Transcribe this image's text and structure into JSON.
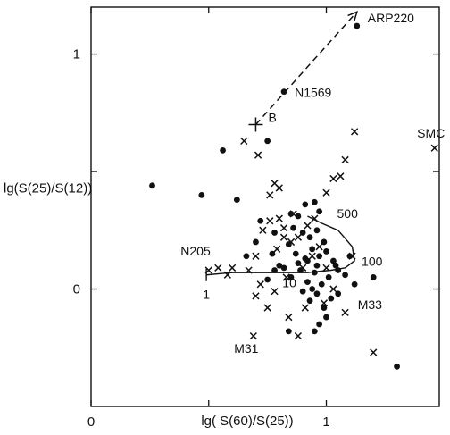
{
  "chart_data": {
    "type": "scatter",
    "title": "",
    "xlabel": "lg( S(60)/S(25))",
    "ylabel": "lg(S(25)/S(12))",
    "xlim": [
      0.0,
      1.48
    ],
    "ylim": [
      -0.5,
      1.2
    ],
    "grid": false,
    "x_ticks": [
      0,
      0.5,
      1
    ],
    "x_tick_labels": [
      "0",
      "",
      "1"
    ],
    "y_ticks": [
      0,
      0.5,
      1
    ],
    "y_tick_labels": [
      "0",
      "",
      "1"
    ],
    "series": [
      {
        "marker": "dot",
        "points": [
          [
            0.26,
            0.44
          ],
          [
            0.47,
            0.4
          ],
          [
            0.62,
            0.38
          ],
          [
            0.56,
            0.59
          ],
          [
            0.75,
            0.63
          ],
          [
            0.82,
            0.84
          ],
          [
            0.72,
            0.29
          ],
          [
            0.78,
            0.24
          ],
          [
            0.7,
            0.2
          ],
          [
            0.77,
            0.15
          ],
          [
            0.8,
            0.1
          ],
          [
            0.75,
            0.04
          ],
          [
            0.85,
            0.32
          ],
          [
            0.88,
            0.31
          ],
          [
            0.91,
            0.36
          ],
          [
            0.95,
            0.37
          ],
          [
            0.97,
            0.33
          ],
          [
            0.86,
            0.26
          ],
          [
            0.9,
            0.24
          ],
          [
            0.93,
            0.22
          ],
          [
            0.96,
            0.25
          ],
          [
            0.99,
            0.2
          ],
          [
            0.84,
            0.19
          ],
          [
            0.87,
            0.15
          ],
          [
            0.91,
            0.13
          ],
          [
            0.94,
            0.17
          ],
          [
            0.97,
            0.14
          ],
          [
            1.0,
            0.16
          ],
          [
            1.03,
            0.12
          ],
          [
            1.05,
            0.08
          ],
          [
            0.82,
            0.09
          ],
          [
            0.85,
            0.05
          ],
          [
            0.89,
            0.08
          ],
          [
            0.92,
            0.03
          ],
          [
            0.95,
            0.07
          ],
          [
            0.98,
            0.02
          ],
          [
            1.01,
            0.05
          ],
          [
            1.04,
            0.1
          ],
          [
            0.9,
            -0.01
          ],
          [
            0.93,
            -0.05
          ],
          [
            0.96,
            -0.02
          ],
          [
            0.99,
            -0.08
          ],
          [
            1.02,
            -0.04
          ],
          [
            1.0,
            -0.12
          ],
          [
            0.97,
            -0.15
          ],
          [
            0.94,
            0.0
          ],
          [
            0.88,
            0.11
          ],
          [
            1.08,
            0.06
          ],
          [
            1.1,
            0.14
          ],
          [
            0.84,
            -0.18
          ],
          [
            0.95,
            -0.18
          ],
          [
            1.05,
            -0.02
          ],
          [
            0.92,
            0.12
          ],
          [
            0.78,
            0.08
          ],
          [
            0.66,
            0.14
          ],
          [
            1.12,
            0.02
          ],
          [
            1.2,
            0.05
          ],
          [
            1.3,
            -0.33
          ],
          [
            1.13,
            1.12
          ],
          [
            0.96,
            0.1
          ]
        ]
      },
      {
        "marker": "cross",
        "points": [
          [
            0.65,
            0.63
          ],
          [
            0.71,
            0.57
          ],
          [
            0.78,
            0.45
          ],
          [
            0.8,
            0.43
          ],
          [
            0.76,
            0.4
          ],
          [
            1.0,
            0.41
          ],
          [
            1.03,
            0.47
          ],
          [
            1.06,
            0.48
          ],
          [
            1.08,
            0.55
          ],
          [
            1.12,
            0.67
          ],
          [
            1.46,
            0.6
          ],
          [
            0.86,
            0.32
          ],
          [
            0.8,
            0.3
          ],
          [
            0.76,
            0.29
          ],
          [
            0.73,
            0.25
          ],
          [
            0.82,
            0.26
          ],
          [
            0.88,
            0.22
          ],
          [
            0.92,
            0.27
          ],
          [
            0.95,
            0.3
          ],
          [
            0.85,
            0.2
          ],
          [
            0.79,
            0.17
          ],
          [
            0.7,
            0.14
          ],
          [
            0.67,
            0.08
          ],
          [
            0.72,
            0.02
          ],
          [
            0.78,
            -0.01
          ],
          [
            0.83,
            0.05
          ],
          [
            0.9,
            0.09
          ],
          [
            0.94,
            0.14
          ],
          [
            0.97,
            0.18
          ],
          [
            1.0,
            0.09
          ],
          [
            1.03,
            0.0
          ],
          [
            0.99,
            -0.06
          ],
          [
            0.91,
            -0.08
          ],
          [
            0.84,
            -0.12
          ],
          [
            0.75,
            -0.08
          ],
          [
            0.7,
            -0.03
          ],
          [
            0.6,
            0.09
          ],
          [
            0.58,
            0.06
          ],
          [
            1.08,
            -0.1
          ],
          [
            0.88,
            -0.2
          ],
          [
            0.69,
            -0.2
          ],
          [
            1.2,
            -0.27
          ],
          [
            0.5,
            0.08
          ],
          [
            0.54,
            0.09
          ],
          [
            1.11,
            0.14
          ],
          [
            0.82,
            0.22
          ]
        ]
      }
    ],
    "annotations": [
      {
        "text": "ARP220",
        "x": 1.13,
        "y": 1.12
      },
      {
        "text": "N1569",
        "x": 0.82,
        "y": 0.84
      },
      {
        "text": "B",
        "x": 0.7,
        "y": 0.7
      },
      {
        "text": "SMC",
        "x": 1.46,
        "y": 0.6
      },
      {
        "text": "500",
        "x": 1.0,
        "y": 0.25
      },
      {
        "text": "100",
        "x": 1.15,
        "y": 0.11
      },
      {
        "text": "N205",
        "x": 0.5,
        "y": 0.1
      },
      {
        "text": "1",
        "x": 0.49,
        "y": 0.05
      },
      {
        "text": "10",
        "x": 0.82,
        "y": 0.05
      },
      {
        "text": "M33",
        "x": 1.05,
        "y": -0.04
      },
      {
        "text": "M31",
        "x": 0.69,
        "y": -0.2
      }
    ],
    "model_track": {
      "line_style": "solid",
      "points": [
        [
          0.49,
          0.06
        ],
        [
          0.6,
          0.07
        ],
        [
          0.72,
          0.07
        ],
        [
          0.82,
          0.07
        ],
        [
          0.92,
          0.07
        ],
        [
          1.02,
          0.08
        ],
        [
          1.08,
          0.09
        ],
        [
          1.12,
          0.12
        ],
        [
          1.11,
          0.18
        ],
        [
          1.05,
          0.25
        ],
        [
          0.98,
          0.28
        ],
        [
          0.92,
          0.31
        ]
      ]
    },
    "arrow_track": {
      "line_style": "dashed",
      "points": [
        [
          0.7,
          0.7
        ],
        [
          1.13,
          1.18
        ]
      ]
    }
  }
}
